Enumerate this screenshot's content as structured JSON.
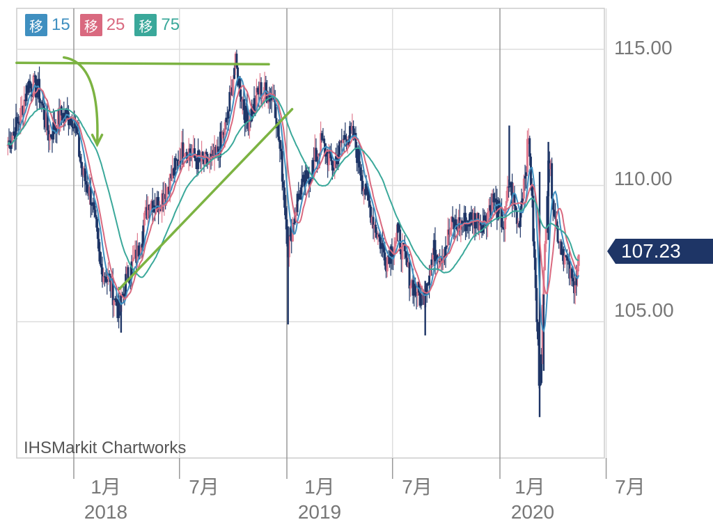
{
  "legend": [
    {
      "badge": "移",
      "period": "15",
      "color": "#3f8fc0"
    },
    {
      "badge": "移",
      "period": "25",
      "color": "#d9697f"
    },
    {
      "badge": "移",
      "period": "75",
      "color": "#3aa89a"
    }
  ],
  "watermark": "IHSMarkit Chartworks",
  "current_price": "107.23",
  "colors": {
    "candle": "#1e3566",
    "candle_up": "#e07a8e",
    "annotation": "#7cb342",
    "price_tag": "#1e3566",
    "grid": "#cccccc"
  },
  "chart_data": {
    "type": "line",
    "title": "",
    "y_ticks": [
      "115.00",
      "110.00",
      "105.00"
    ],
    "y_tick_values": [
      115,
      110,
      105
    ],
    "x_ticks": [
      {
        "label": "1月",
        "sub": "2018"
      },
      {
        "label": "7月",
        "sub": ""
      },
      {
        "label": "1月",
        "sub": "2019"
      },
      {
        "label": "7月",
        "sub": ""
      },
      {
        "label": "1月",
        "sub": "2020"
      },
      {
        "label": "7月",
        "sub": ""
      }
    ],
    "ylim": [
      100,
      116.5
    ],
    "x_start": "2017-09",
    "price": [
      [
        "2017-09-10",
        111.5
      ],
      [
        "2017-10-01",
        112.5
      ],
      [
        "2017-10-15",
        113.8
      ],
      [
        "2017-11-01",
        113.5
      ],
      [
        "2017-11-20",
        111.8
      ],
      [
        "2017-12-10",
        112.6
      ],
      [
        "2018-01-01",
        112.5
      ],
      [
        "2018-01-15",
        110.5
      ],
      [
        "2018-02-01",
        109.5
      ],
      [
        "2018-02-15",
        107.0
      ],
      [
        "2018-03-01",
        106.6
      ],
      [
        "2018-03-20",
        105.3
      ],
      [
        "2018-04-01",
        106.6
      ],
      [
        "2018-04-20",
        107.5
      ],
      [
        "2018-05-10",
        109.5
      ],
      [
        "2018-05-25",
        109.3
      ],
      [
        "2018-06-15",
        110.2
      ],
      [
        "2018-07-10",
        111.5
      ],
      [
        "2018-07-25",
        111.0
      ],
      [
        "2018-08-15",
        110.8
      ],
      [
        "2018-09-01",
        111.0
      ],
      [
        "2018-09-20",
        112.3
      ],
      [
        "2018-10-04",
        114.5
      ],
      [
        "2018-10-25",
        112.3
      ],
      [
        "2018-11-15",
        113.5
      ],
      [
        "2018-12-10",
        113.3
      ],
      [
        "2018-12-25",
        110.3
      ],
      [
        "2019-01-03",
        107.7
      ],
      [
        "2019-01-20",
        109.6
      ],
      [
        "2019-02-10",
        110.5
      ],
      [
        "2019-03-01",
        111.6
      ],
      [
        "2019-03-20",
        110.7
      ],
      [
        "2019-04-10",
        111.8
      ],
      [
        "2019-04-25",
        111.8
      ],
      [
        "2019-05-15",
        109.8
      ],
      [
        "2019-06-01",
        108.5
      ],
      [
        "2019-06-20",
        107.3
      ],
      [
        "2019-07-10",
        108.2
      ],
      [
        "2019-08-01",
        106.5
      ],
      [
        "2019-08-20",
        105.8
      ],
      [
        "2019-09-10",
        107.6
      ],
      [
        "2019-09-25",
        107.5
      ],
      [
        "2019-10-10",
        108.5
      ],
      [
        "2019-10-25",
        108.6
      ],
      [
        "2019-11-15",
        108.8
      ],
      [
        "2019-12-05",
        108.7
      ],
      [
        "2019-12-20",
        109.5
      ],
      [
        "2020-01-08",
        108.5
      ],
      [
        "2020-01-17",
        110.2
      ],
      [
        "2020-02-01",
        108.5
      ],
      [
        "2020-02-20",
        111.8
      ],
      [
        "2020-03-09",
        102.5
      ],
      [
        "2020-03-24",
        111.2
      ],
      [
        "2020-04-06",
        108.5
      ],
      [
        "2020-04-22",
        107.3
      ],
      [
        "2020-05-05",
        106.3
      ],
      [
        "2020-05-15",
        107.23
      ]
    ],
    "series": [
      {
        "name": "移 15",
        "color": "#3f8fc0"
      },
      {
        "name": "移 25",
        "color": "#d9697f"
      },
      {
        "name": "移 75",
        "color": "#3aa89a"
      }
    ],
    "annotations": [
      {
        "type": "hline",
        "from": "2017-09-25",
        "to": "2018-12-01",
        "y": 114.5
      },
      {
        "type": "curve_arrow",
        "from": [
          "2017-12-15",
          114.7
        ],
        "to": [
          "2018-02-10",
          111.5
        ]
      },
      {
        "type": "trendline",
        "from": [
          "2018-03-20",
          106.2
        ],
        "to": [
          "2019-01-10",
          112.8
        ]
      }
    ]
  }
}
